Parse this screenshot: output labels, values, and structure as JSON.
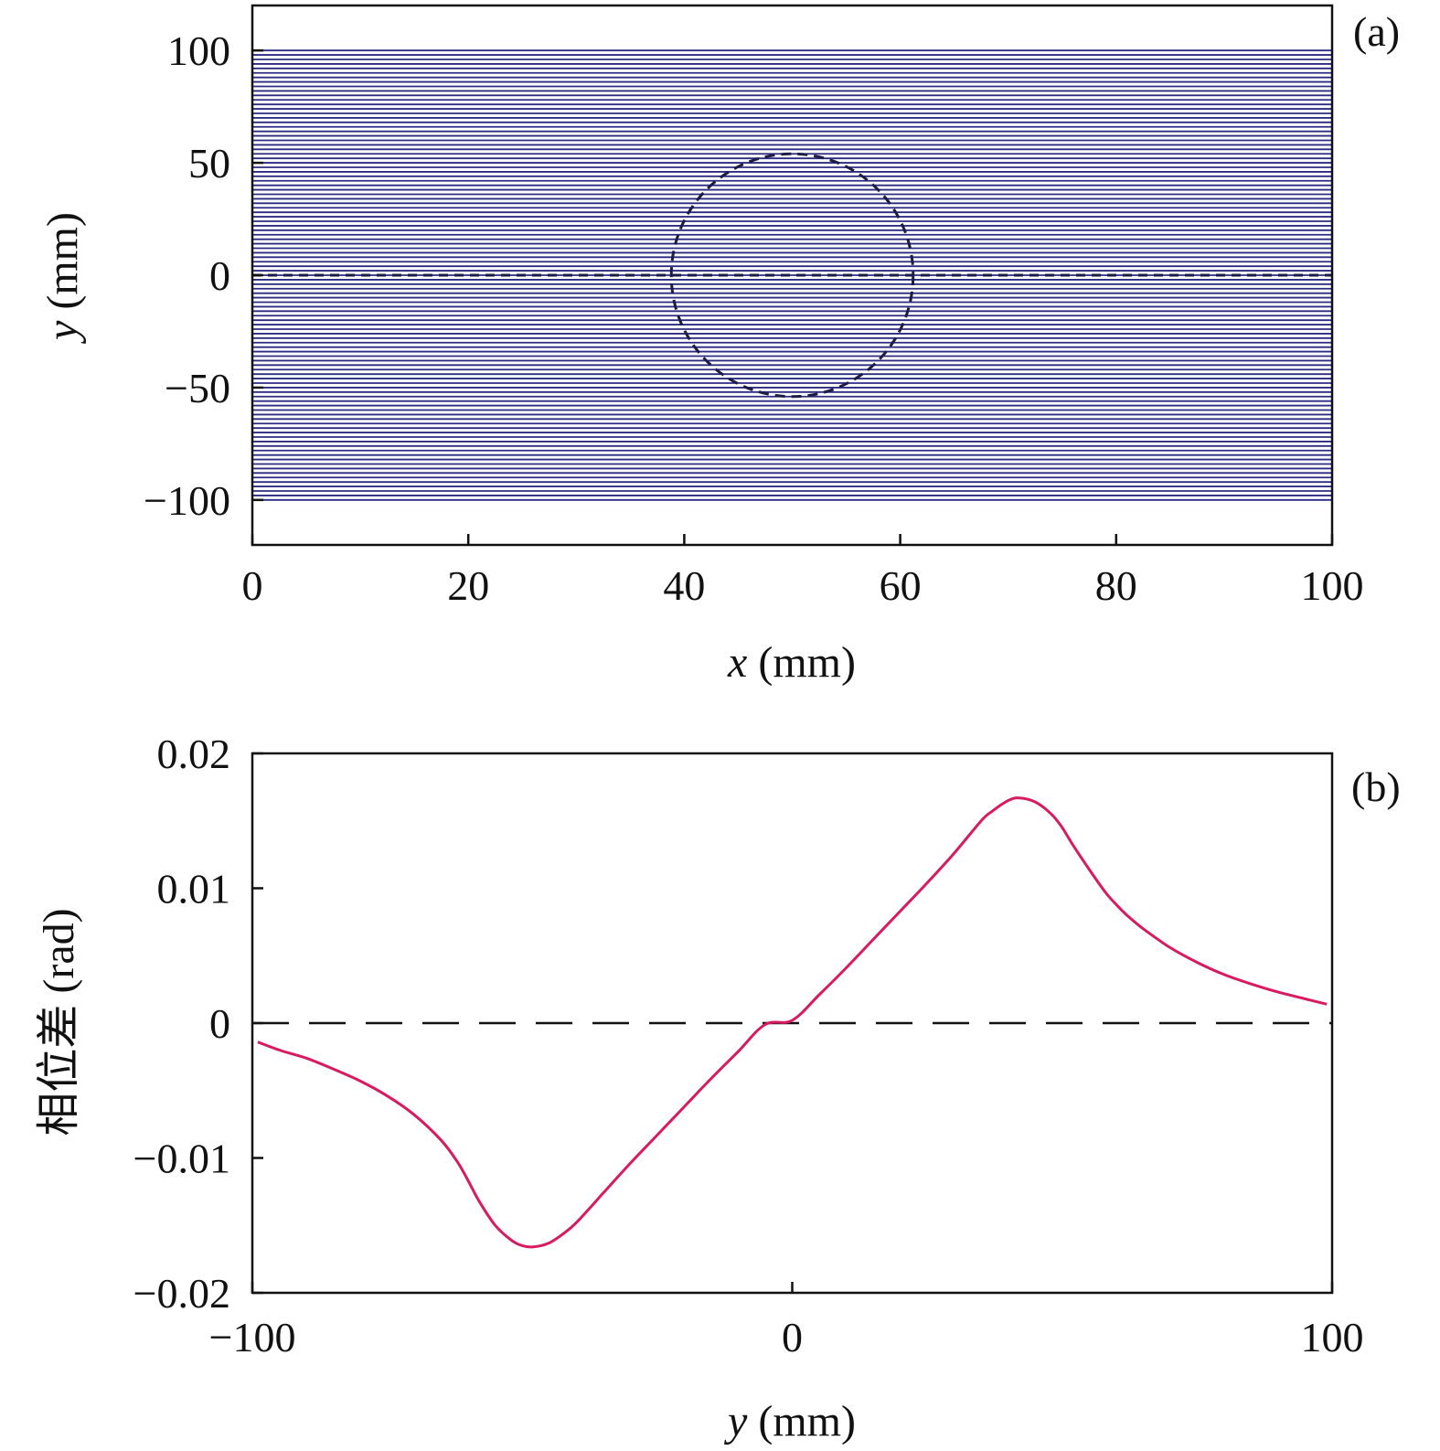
{
  "chart_data": [
    {
      "type": "line",
      "panel_label": "(a)",
      "xlabel": {
        "var": "x",
        "unit": " (mm)"
      },
      "ylabel": {
        "var": "y",
        "unit": " (mm)"
      },
      "xlim": [
        0,
        100
      ],
      "ylim": [
        -120,
        120
      ],
      "xticks": [
        0,
        20,
        40,
        60,
        80,
        100
      ],
      "xtick_labels": [
        "0",
        "20",
        "40",
        "60",
        "80",
        "100"
      ],
      "yticks": [
        100,
        50,
        0,
        -50,
        -100
      ],
      "ytick_labels": [
        "100",
        "50",
        "0",
        "−50",
        "−100"
      ],
      "line_spacing": 2,
      "line_range": [
        -100,
        100
      ],
      "line_color": "#2b2b82",
      "circle": {
        "center": [
          50,
          0
        ],
        "radius_x": 11.2,
        "radius_y": 54,
        "style": "dashed"
      },
      "centerline": {
        "y": 0,
        "style": "dashed"
      },
      "grid": false
    },
    {
      "type": "line",
      "panel_label": "(b)",
      "xlabel": {
        "var": "y",
        "unit": " (mm)"
      },
      "ylabel": {
        "text": "相位差 (rad)"
      },
      "xlim": [
        -100,
        100
      ],
      "ylim": [
        -0.02,
        0.02
      ],
      "xticks": [
        -100,
        0,
        100
      ],
      "xtick_labels": [
        "−100",
        "0",
        "100"
      ],
      "yticks": [
        0.02,
        0.01,
        0,
        -0.01,
        -0.02
      ],
      "ytick_labels": [
        "0.02",
        "0.01",
        "0",
        "−0.01",
        "−0.02"
      ],
      "grid": false,
      "zero_line": {
        "y": 0,
        "style": "dashed"
      },
      "series": [
        {
          "color": "#d81b60",
          "x": [
            -99,
            -95,
            -90,
            -85,
            -80,
            -75,
            -70,
            -65,
            -62,
            -60,
            -58,
            -55,
            -52,
            -50,
            -48,
            -45,
            -42,
            -40,
            -37,
            -35,
            -30,
            -25,
            -20,
            -15,
            -10,
            -5,
            0,
            5,
            10,
            15,
            20,
            25,
            30,
            35,
            37,
            40,
            42,
            45,
            48,
            50,
            52,
            55,
            58,
            60,
            62,
            65,
            70,
            75,
            80,
            85,
            90,
            95,
            99
          ],
          "y": [
            -0.0014,
            -0.002,
            -0.0026,
            -0.0034,
            -0.0043,
            -0.0054,
            -0.0068,
            -0.0087,
            -0.0103,
            -0.0117,
            -0.0132,
            -0.015,
            -0.0161,
            -0.0165,
            -0.0166,
            -0.0163,
            -0.0155,
            -0.0148,
            -0.0135,
            -0.0126,
            -0.0104,
            -0.0083,
            -0.0062,
            -0.0041,
            -0.0021,
            -0.0001,
            0.0002,
            0.0021,
            0.0041,
            0.0062,
            0.0083,
            0.0104,
            0.0126,
            0.015,
            0.0157,
            0.0165,
            0.0167,
            0.0164,
            0.0155,
            0.0145,
            0.0132,
            0.0114,
            0.0097,
            0.0088,
            0.008,
            0.007,
            0.0056,
            0.0045,
            0.0036,
            0.0029,
            0.0023,
            0.0018,
            0.0014
          ]
        }
      ]
    }
  ]
}
